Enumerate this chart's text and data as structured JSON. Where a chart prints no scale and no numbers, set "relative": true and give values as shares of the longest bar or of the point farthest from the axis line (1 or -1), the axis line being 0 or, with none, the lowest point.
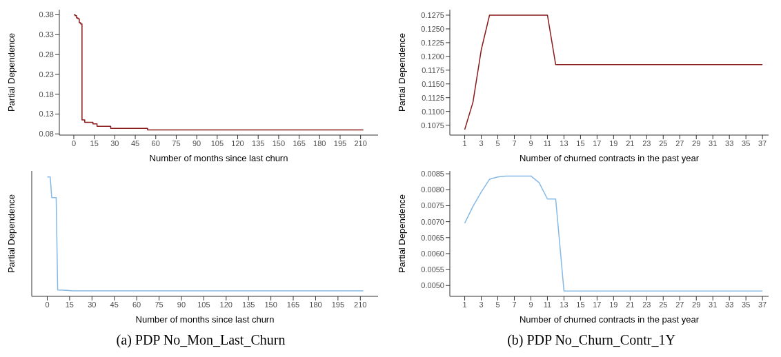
{
  "chart_data": [
    {
      "type": "step",
      "xlabel": "Number of months since last churn",
      "ylabel": "Partial Dependence",
      "xlim": [
        -10.6,
        222.8
      ],
      "xticks": [
        0,
        15,
        30,
        45,
        60,
        75,
        90,
        105,
        120,
        135,
        150,
        165,
        180,
        195,
        210
      ],
      "ylim": [
        0.077,
        0.393
      ],
      "yticks": [
        0.08,
        0.13,
        0.18,
        0.23,
        0.28,
        0.33,
        0.38
      ],
      "series": [
        {
          "color": "#8b1a1a",
          "x": [
            0,
            1,
            2,
            3,
            4,
            5,
            6,
            8,
            14,
            17,
            27,
            54,
            212
          ],
          "values": [
            0.38,
            0.378,
            0.372,
            0.37,
            0.36,
            0.357,
            0.115,
            0.109,
            0.105,
            0.099,
            0.094,
            0.09,
            0.09
          ]
        }
      ]
    },
    {
      "type": "line",
      "xlabel": "Number of churned contracts in the past year",
      "ylabel": "Partial Dependence",
      "xlim": [
        -0.8,
        37.74
      ],
      "xticks": [
        1,
        3,
        5,
        7,
        9,
        11,
        13,
        15,
        17,
        19,
        21,
        23,
        25,
        27,
        29,
        31,
        33,
        35,
        37
      ],
      "ylim": [
        0.1057,
        0.1285
      ],
      "yticks": [
        0.1075,
        {
          "value": 0.11,
          "label": "0.1100"
        },
        0.1125,
        {
          "value": 0.115,
          "label": "0.1150"
        },
        0.1175,
        {
          "value": 0.12,
          "label": "0.1200"
        },
        0.1225,
        {
          "value": 0.125,
          "label": "0.1250"
        },
        0.1275
      ],
      "series": [
        {
          "color": "#8b1a1a",
          "x": [
            1,
            2,
            3,
            4,
            5,
            6,
            7,
            8,
            9,
            10,
            11,
            12,
            13,
            14,
            15,
            16,
            17,
            18,
            19,
            20,
            21,
            22,
            23,
            24,
            25,
            26,
            27,
            28,
            29,
            30,
            31,
            32,
            33,
            34,
            35,
            36,
            37
          ],
          "values": [
            0.1067,
            0.1117,
            0.1212,
            0.1275,
            0.1275,
            0.1275,
            0.1275,
            0.1275,
            0.1275,
            0.1275,
            0.1275,
            0.1185,
            0.1185,
            0.1185,
            0.1185,
            0.1185,
            0.1185,
            0.1185,
            0.1185,
            0.1185,
            0.1185,
            0.1185,
            0.1185,
            0.1185,
            0.1185,
            0.1185,
            0.1185,
            0.1185,
            0.1185,
            0.1185,
            0.1185,
            0.1185,
            0.1185,
            0.1185,
            0.1185,
            0.1185,
            0.1185
          ]
        }
      ]
    },
    {
      "type": "line",
      "relative": true,
      "xlabel": "Number of months since last churn",
      "ylabel": "Partial Dependence",
      "xlim": [
        -10.4,
        221.9
      ],
      "xticks": [
        0,
        15,
        30,
        45,
        60,
        75,
        90,
        105,
        120,
        135,
        150,
        165,
        180,
        195,
        210
      ],
      "tick_labels": "x",
      "annotations": [
        "(a) PDP No_Mon_Last_Churn"
      ],
      "series": [
        {
          "color": "#85b9e6",
          "x": [
            0,
            2,
            3,
            6,
            7,
            13,
            17,
            212
          ],
          "values": [
            1,
            1,
            0.827,
            0.827,
            0.053,
            0.05,
            0.046,
            0.046
          ]
        }
      ]
    },
    {
      "type": "line",
      "xlabel": "Number of churned contracts in the past year",
      "ylabel": "Partial Dependence",
      "xlim": [
        -0.8,
        37.74
      ],
      "xticks": [
        1,
        3,
        5,
        7,
        9,
        11,
        13,
        15,
        17,
        19,
        21,
        23,
        25,
        27,
        29,
        31,
        33,
        35,
        37
      ],
      "ylim": [
        0.00466,
        0.00859
      ],
      "yticks": [
        {
          "value": 0.005,
          "label": "0.0050"
        },
        0.0055,
        {
          "value": 0.006,
          "label": "0.0060"
        },
        0.0065,
        {
          "value": 0.007,
          "label": "0.0070"
        },
        0.0075,
        {
          "value": 0.008,
          "label": "0.0080"
        },
        0.0085
      ],
      "annotations": [
        "(b) PDP No_Churn_Contr_1Y"
      ],
      "series": [
        {
          "color": "#85b9e6",
          "x": [
            1,
            2,
            3,
            4,
            5,
            6,
            7,
            8,
            9,
            10,
            11,
            12,
            13,
            14,
            15,
            16,
            17,
            18,
            19,
            20,
            21,
            22,
            23,
            24,
            25,
            26,
            27,
            28,
            29,
            30,
            31,
            32,
            33,
            34,
            35,
            36,
            37
          ],
          "values": [
            0.00695,
            0.00748,
            0.00793,
            0.00833,
            0.0084,
            0.00843,
            0.00843,
            0.00843,
            0.00843,
            0.00822,
            0.00771,
            0.00771,
            0.00483,
            0.00483,
            0.00483,
            0.00483,
            0.00483,
            0.00483,
            0.00483,
            0.00483,
            0.00483,
            0.00483,
            0.00483,
            0.00483,
            0.00483,
            0.00483,
            0.00483,
            0.00483,
            0.00483,
            0.00483,
            0.00483,
            0.00483,
            0.00483,
            0.00483,
            0.00483,
            0.00483,
            0.00483
          ]
        }
      ]
    }
  ]
}
